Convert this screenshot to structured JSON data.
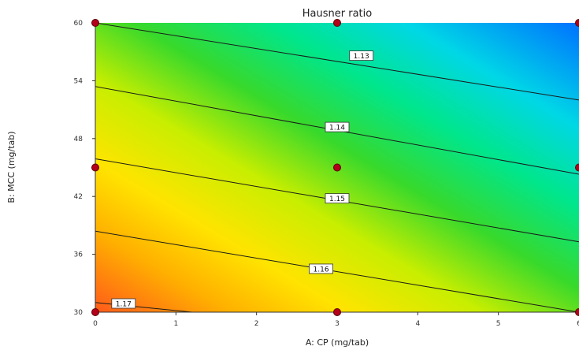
{
  "chart_data": {
    "type": "contour",
    "title": "Hausner ratio",
    "xlabel": "A: CP (mg/tab)",
    "ylabel": "B: MCC (mg/tab)",
    "xlim": [
      0,
      6
    ],
    "ylim": [
      30,
      60
    ],
    "x_ticks": [
      "0",
      "1",
      "2",
      "3",
      "4",
      "5",
      "6"
    ],
    "y_ticks": [
      "30",
      "36",
      "42",
      "48",
      "54",
      "60"
    ],
    "colormap": "blue (low) to green to yellow to red (high)",
    "contours": [
      {
        "label": "1.13",
        "points": [
          [
            0,
            60.0
          ],
          [
            6,
            52.0
          ]
        ]
      },
      {
        "label": "1.14",
        "points": [
          [
            0,
            53.4
          ],
          [
            6,
            44.3
          ]
        ]
      },
      {
        "label": "1.15",
        "points": [
          [
            0,
            45.9
          ],
          [
            6,
            37.3
          ]
        ]
      },
      {
        "label": "1.16",
        "points": [
          [
            0,
            38.4
          ],
          [
            6,
            30.0
          ]
        ]
      },
      {
        "label": "1.17",
        "points": [
          [
            0,
            31.0
          ],
          [
            1.2,
            30.0
          ]
        ]
      }
    ],
    "contour_label_positions": [
      {
        "label": "1.13",
        "x": 3.3,
        "y": 56.6
      },
      {
        "label": "1.14",
        "x": 3.0,
        "y": 49.2
      },
      {
        "label": "1.15",
        "x": 3.0,
        "y": 41.8
      },
      {
        "label": "1.16",
        "x": 2.8,
        "y": 34.5
      },
      {
        "label": "1.17",
        "x": 0.35,
        "y": 30.9
      }
    ],
    "design_points": [
      [
        0,
        60
      ],
      [
        3,
        60
      ],
      [
        6,
        60
      ],
      [
        0,
        45
      ],
      [
        3,
        45
      ],
      [
        6,
        45
      ],
      [
        0,
        30
      ],
      [
        3,
        30
      ],
      [
        6,
        30
      ]
    ]
  }
}
